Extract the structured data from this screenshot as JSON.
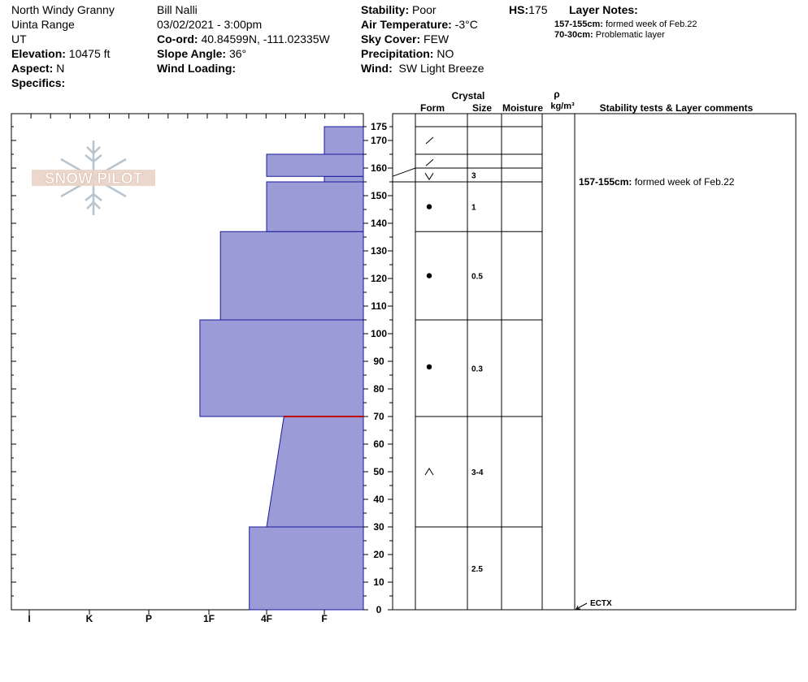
{
  "header": {
    "location_name": "North Windy Granny",
    "range": "Uinta Range",
    "state": "UT",
    "elevation_label": "Elevation:",
    "elevation_value": "10475 ft",
    "aspect_label": "Aspect:",
    "aspect_value": "N",
    "specifics_label": "Specifics:",
    "observer": "Bill Nalli",
    "datetime": "03/02/2021 - 3:00pm",
    "coord_label": "Co-ord:",
    "coord_value": "40.84599N, -111.02335W",
    "slope_label": "Slope Angle:",
    "slope_value": "36°",
    "wind_loading_label": "Wind Loading:",
    "stability_label": "Stability:",
    "stability_value": "Poor",
    "air_temp_label": "Air Temperature:",
    "air_temp_value": "-3°C",
    "sky_label": "Sky Cover:",
    "sky_value": "FEW",
    "precip_label": "Precipitation:",
    "precip_value": "NO",
    "wind_label": "Wind:",
    "wind_value": "SW Light Breeze",
    "hs_label": "HS:",
    "hs_value": "175",
    "layer_notes_label": "Layer Notes:",
    "layer_notes": [
      {
        "range": "157-155cm:",
        "text": "formed week of Feb.22"
      },
      {
        "range": "70-30cm:",
        "text": "Problematic layer"
      }
    ]
  },
  "columns": {
    "crystal": "Crystal",
    "form": "Form",
    "size": "Size",
    "moisture": "Moisture",
    "rho": "ρ",
    "density_unit": "kg/m³",
    "comments": "Stability tests & Layer comments"
  },
  "logo_text": "SNOW PILOT",
  "colors": {
    "layer_fill": "#9b9bd7",
    "layer_stroke": "#1a1a9a",
    "problem_line": "#c00000"
  },
  "chart_data": {
    "type": "snow_profile",
    "ylim": [
      0,
      175
    ],
    "y_ticks": [
      0,
      10,
      20,
      30,
      40,
      50,
      60,
      70,
      80,
      90,
      100,
      110,
      120,
      130,
      140,
      150,
      160,
      170,
      175
    ],
    "hardness_scale": [
      "I",
      "K",
      "P",
      "1F",
      "4F",
      "F"
    ],
    "layers": [
      {
        "bottom": 0,
        "top": 30,
        "hardness_bottom": 3.7,
        "hardness_top": 3.7
      },
      {
        "bottom": 30,
        "top": 70,
        "hardness_bottom": 4.0,
        "hardness_top": 4.3
      },
      {
        "bottom": 70,
        "top": 105,
        "hardness_bottom": 2.85,
        "hardness_top": 2.85
      },
      {
        "bottom": 105,
        "top": 137,
        "hardness_bottom": 3.2,
        "hardness_top": 3.2
      },
      {
        "bottom": 137,
        "top": 155,
        "hardness_bottom": 4.0,
        "hardness_top": 4.0
      },
      {
        "bottom": 155,
        "top": 157,
        "hardness_bottom": 5.0,
        "hardness_top": 5.0
      },
      {
        "bottom": 157,
        "top": 165,
        "hardness_bottom": 4.0,
        "hardness_top": 4.0
      },
      {
        "bottom": 165,
        "top": 175,
        "hardness_bottom": 5.0,
        "hardness_top": 5.0
      }
    ],
    "problem_layer_height": 70,
    "grain_rows": [
      {
        "bottom": 0,
        "top": 30,
        "form": "",
        "size": "2.5",
        "form_at": 15
      },
      {
        "bottom": 30,
        "top": 70,
        "form": "^",
        "size": "3-4",
        "form_at": 50
      },
      {
        "bottom": 70,
        "top": 105,
        "form": "●",
        "size": "0.3",
        "form_at": 88
      },
      {
        "bottom": 105,
        "top": 137,
        "form": "●",
        "size": "0.5",
        "form_at": 121
      },
      {
        "bottom": 137,
        "top": 155,
        "form": "●",
        "size": "1",
        "form_at": 146
      },
      {
        "bottom": 155,
        "top": 160,
        "form": "v",
        "size": "3",
        "form_at": 157
      },
      {
        "bottom": 160,
        "top": 165,
        "form": "/",
        "size": "",
        "form_at": 162
      },
      {
        "bottom": 165,
        "top": 175,
        "form": "/",
        "size": "",
        "form_at": 170
      }
    ],
    "comments": [
      {
        "height": 155,
        "range": "157-155cm:",
        "text": "formed week of Feb.22"
      }
    ],
    "stability_tests": [
      {
        "height": 0,
        "label": "ECTX"
      }
    ]
  }
}
